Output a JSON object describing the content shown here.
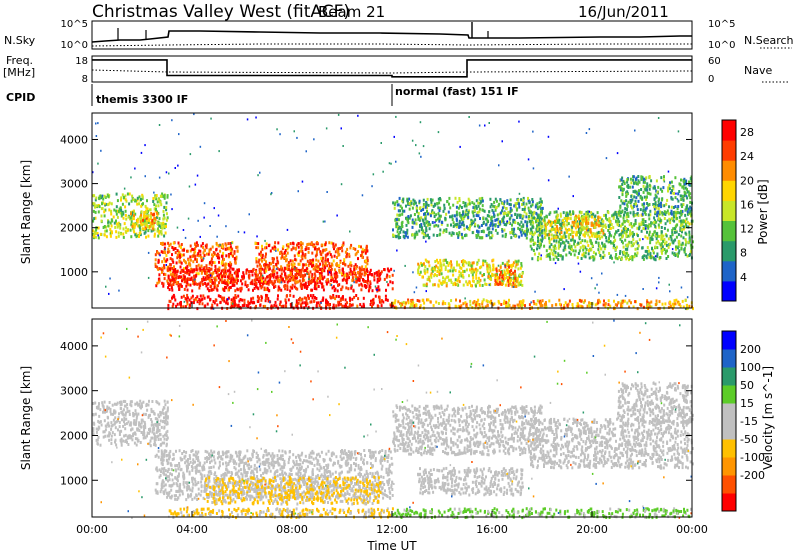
{
  "header": {
    "title": "Christmas Valley West (fitACF)",
    "beam": "Beam 21",
    "date": "16/Jun/2011"
  },
  "status_panels": {
    "nsky_label": "N.Sky",
    "nsearch_label": "N.Search",
    "nsky_ticks": [
      "10^5",
      "10^0"
    ],
    "nsearch_ticks": [
      "10^5",
      "10^0"
    ],
    "freq_label": "Freq.",
    "freq_unit": "[MHz]",
    "freq_ticks": [
      "18",
      "8"
    ],
    "nave_label": "Nave",
    "nave_ticks": [
      "60",
      "0"
    ],
    "cpid_label": "CPID",
    "cpid_modes": [
      {
        "label": "themis 3300 IF",
        "start_hour": 0
      },
      {
        "label": "normal (fast) 151 IF",
        "start_hour": 12
      }
    ],
    "freq_steps": [
      {
        "from_hour": 0,
        "to_hour": 3.0,
        "mhz": 16.5
      },
      {
        "from_hour": 3.0,
        "to_hour": 12.0,
        "mhz": 10.5
      },
      {
        "from_hour": 12.0,
        "to_hour": 15.0,
        "mhz": 10.0
      },
      {
        "from_hour": 15.0,
        "to_hour": 24.0,
        "mhz": 16.5
      }
    ]
  },
  "colors": {
    "power_scale": [
      "#0000ff",
      "#1e64c8",
      "#2a9a6a",
      "#55c23a",
      "#c8e628",
      "#ffd500",
      "#ff8c00",
      "#ff3c00",
      "#ff0000"
    ],
    "velocity_scale": [
      "#ff0000",
      "#ff5000",
      "#ff9500",
      "#ffc000",
      "#c0c0c0",
      "#c0c0c0",
      "#5ccc28",
      "#2a9a6a",
      "#1e64c8",
      "#0000ff"
    ]
  },
  "chart_data": [
    {
      "type": "heatmap",
      "title": "",
      "xlabel": "",
      "ylabel": "Slant Range [km]",
      "x_range_hours": [
        0,
        24
      ],
      "ylim": [
        180,
        4600
      ],
      "yticks": [
        "1000",
        "2000",
        "3000",
        "4000"
      ],
      "ytick_values": [
        1000,
        2000,
        3000,
        4000
      ],
      "colorbar": {
        "label": "Power [dB]",
        "ticks": [
          "4",
          "8",
          "12",
          "16",
          "20",
          "24",
          "28"
        ],
        "range": [
          0,
          30
        ]
      },
      "scatter_bands": [
        {
          "from_hour": 0.0,
          "to_hour": 3.0,
          "range_low": 1800,
          "range_high": 2800,
          "power": 14
        },
        {
          "from_hour": 1.5,
          "to_hour": 2.6,
          "range_low": 2000,
          "range_high": 2400,
          "power": 20
        },
        {
          "from_hour": 2.5,
          "to_hour": 5.8,
          "range_low": 700,
          "range_high": 1700,
          "power": 24
        },
        {
          "from_hour": 3.0,
          "to_hour": 12.0,
          "range_low": 600,
          "range_high": 1100,
          "power": 28
        },
        {
          "from_hour": 6.5,
          "to_hour": 11.0,
          "range_low": 800,
          "range_high": 1700,
          "power": 24
        },
        {
          "from_hour": 3.0,
          "to_hour": 12.0,
          "range_low": 200,
          "range_high": 500,
          "power": 28
        },
        {
          "from_hour": 12.0,
          "to_hour": 18.0,
          "range_low": 1800,
          "range_high": 2700,
          "power": 10
        },
        {
          "from_hour": 13.0,
          "to_hour": 17.2,
          "range_low": 700,
          "range_high": 1300,
          "power": 16
        },
        {
          "from_hour": 16.0,
          "to_hour": 17.0,
          "range_low": 700,
          "range_high": 1200,
          "power": 22
        },
        {
          "from_hour": 17.5,
          "to_hour": 24.0,
          "range_low": 1300,
          "range_high": 2400,
          "power": 12
        },
        {
          "from_hour": 18.0,
          "to_hour": 20.5,
          "range_low": 1800,
          "range_high": 2300,
          "power": 18
        },
        {
          "from_hour": 21.0,
          "to_hour": 24.0,
          "range_low": 2300,
          "range_high": 3200,
          "power": 10
        },
        {
          "from_hour": 12.0,
          "to_hour": 24.0,
          "range_low": 200,
          "range_high": 400,
          "power": 20
        }
      ]
    },
    {
      "type": "heatmap",
      "title": "",
      "xlabel": "Time UT",
      "ylabel": "Slant Range [km]",
      "x_range_hours": [
        0,
        24
      ],
      "xticks": [
        "00:00",
        "04:00",
        "08:00",
        "12:00",
        "16:00",
        "20:00",
        "00:00"
      ],
      "ylim": [
        180,
        4600
      ],
      "yticks": [
        "1000",
        "2000",
        "3000",
        "4000"
      ],
      "ytick_values": [
        1000,
        2000,
        3000,
        4000
      ],
      "colorbar": {
        "label": "Velocity [m s^-1]",
        "ticks": [
          "200",
          "100",
          "50",
          "15",
          "-15",
          "-50",
          "-100",
          "-200"
        ],
        "range": [
          -250,
          250
        ]
      },
      "scatter_bands": [
        {
          "from_hour": 0.0,
          "to_hour": 3.0,
          "range_low": 1800,
          "range_high": 2800,
          "velocity": 0
        },
        {
          "from_hour": 2.5,
          "to_hour": 12.0,
          "range_low": 600,
          "range_high": 1700,
          "velocity": 0
        },
        {
          "from_hour": 4.5,
          "to_hour": 11.5,
          "range_low": 500,
          "range_high": 1100,
          "velocity": -60
        },
        {
          "from_hour": 3.0,
          "to_hour": 12.0,
          "range_low": 200,
          "range_high": 400,
          "velocity": -60
        },
        {
          "from_hour": 12.0,
          "to_hour": 18.0,
          "range_low": 1600,
          "range_high": 2700,
          "velocity": 0
        },
        {
          "from_hour": 13.0,
          "to_hour": 17.2,
          "range_low": 700,
          "range_high": 1300,
          "velocity": 0
        },
        {
          "from_hour": 17.5,
          "to_hour": 24.0,
          "range_low": 1300,
          "range_high": 2400,
          "velocity": 0
        },
        {
          "from_hour": 21.0,
          "to_hour": 24.0,
          "range_low": 2300,
          "range_high": 3200,
          "velocity": 0
        },
        {
          "from_hour": 12.0,
          "to_hour": 24.0,
          "range_low": 200,
          "range_high": 400,
          "velocity": 60
        }
      ]
    }
  ]
}
